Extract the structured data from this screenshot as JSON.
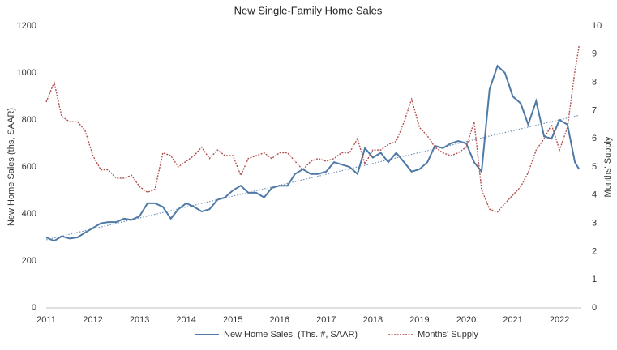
{
  "chart_data": {
    "type": "line",
    "title": "New Single-Family Home Sales",
    "ylabel": "New Home Sales (ths, SAAR)",
    "y2label": "Months' Supply",
    "x": [
      2011.0,
      2011.17,
      2011.33,
      2011.5,
      2011.67,
      2011.83,
      2012.0,
      2012.17,
      2012.33,
      2012.5,
      2012.67,
      2012.83,
      2013.0,
      2013.17,
      2013.33,
      2013.5,
      2013.67,
      2013.83,
      2014.0,
      2014.17,
      2014.33,
      2014.5,
      2014.67,
      2014.83,
      2015.0,
      2015.17,
      2015.33,
      2015.5,
      2015.67,
      2015.83,
      2016.0,
      2016.17,
      2016.33,
      2016.5,
      2016.67,
      2016.83,
      2017.0,
      2017.17,
      2017.33,
      2017.5,
      2017.67,
      2017.83,
      2018.0,
      2018.17,
      2018.33,
      2018.5,
      2018.67,
      2018.83,
      2019.0,
      2019.17,
      2019.33,
      2019.5,
      2019.67,
      2019.83,
      2020.0,
      2020.17,
      2020.33,
      2020.5,
      2020.67,
      2020.83,
      2021.0,
      2021.17,
      2021.33,
      2021.5,
      2021.67,
      2021.83,
      2022.0,
      2022.17,
      2022.33,
      2022.42
    ],
    "series": [
      {
        "name": "New Home Sales, (Ths. #, SAAR)",
        "color": "#4f79a6",
        "style": "solid",
        "values": [
          300,
          285,
          305,
          295,
          300,
          320,
          340,
          360,
          365,
          365,
          380,
          375,
          390,
          445,
          445,
          430,
          380,
          420,
          445,
          430,
          410,
          420,
          460,
          470,
          500,
          520,
          490,
          490,
          470,
          510,
          520,
          520,
          570,
          590,
          570,
          570,
          580,
          620,
          610,
          600,
          570,
          680,
          640,
          660,
          620,
          660,
          620,
          580,
          590,
          620,
          690,
          680,
          700,
          710,
          700,
          620,
          580,
          930,
          1030,
          1000,
          900,
          870,
          780,
          880,
          730,
          720,
          800,
          780,
          620,
          590
        ]
      },
      {
        "name": "Months' Supply",
        "color": "#b0504f",
        "style": "dotted",
        "axis": "y2",
        "values": [
          7.3,
          8.0,
          6.8,
          6.6,
          6.6,
          6.3,
          5.4,
          4.9,
          4.9,
          4.6,
          4.6,
          4.7,
          4.3,
          4.1,
          4.2,
          5.5,
          5.4,
          5.0,
          5.2,
          5.4,
          5.7,
          5.3,
          5.6,
          5.4,
          5.4,
          4.7,
          5.3,
          5.4,
          5.5,
          5.3,
          5.5,
          5.5,
          5.2,
          4.9,
          5.2,
          5.3,
          5.2,
          5.3,
          5.5,
          5.5,
          6.0,
          5.1,
          5.6,
          5.6,
          5.8,
          5.9,
          6.6,
          7.4,
          6.4,
          6.1,
          5.7,
          5.5,
          5.4,
          5.5,
          5.7,
          6.6,
          4.2,
          3.5,
          3.4,
          3.7,
          4.0,
          4.3,
          4.8,
          5.6,
          6.0,
          6.5,
          5.6,
          6.4,
          8.4,
          9.3
        ]
      }
    ],
    "trendline": {
      "x": [
        2011.0,
        2022.42
      ],
      "values": [
        290,
        820
      ],
      "color": "#6f93b8"
    },
    "xlim": [
      2011,
      2022.45
    ],
    "xticks": [
      2011,
      2012,
      2013,
      2014,
      2015,
      2016,
      2017,
      2018,
      2019,
      2020,
      2021,
      2022
    ],
    "ylim": [
      0,
      1200
    ],
    "yticks": [
      0,
      200,
      400,
      600,
      800,
      1000,
      1200
    ],
    "y2lim": [
      0,
      10
    ],
    "y2ticks": [
      0,
      1,
      2,
      3,
      4,
      5,
      6,
      7,
      8,
      9,
      10
    ],
    "grid": false,
    "legend": "bottom"
  }
}
